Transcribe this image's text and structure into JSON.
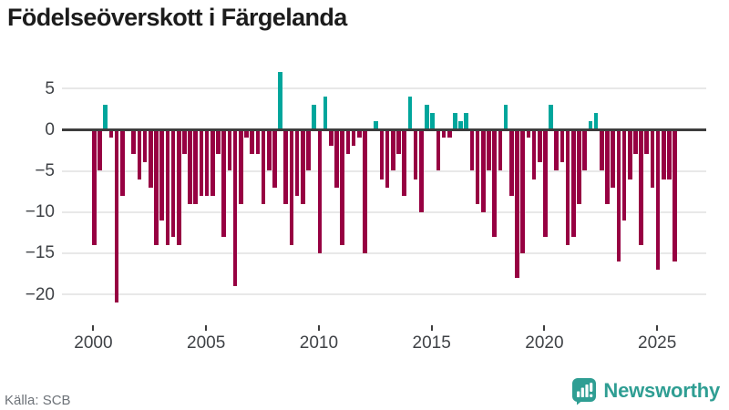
{
  "title": "Födelseöverskott i Färgelanda",
  "footer": {
    "source": "Källa: SCB",
    "brand": "Newsworthy"
  },
  "colors": {
    "positive_bar": "#00a69c",
    "negative_bar": "#970042",
    "zero_line": "#3d3d3d",
    "gridline": "#e8e8e8",
    "axis_label": "#3f4246",
    "title_text": "#1c1c1c",
    "source_text": "#6d7278",
    "brand_teal": "#2f9e93",
    "background": "#ffffff"
  },
  "chart_data": {
    "type": "bar",
    "title": "Födelseöverskott i Färgelanda",
    "frequency": "quarterly",
    "start": "2000 Q1",
    "end": "2025 Q4",
    "grid": "horizontal",
    "legend": "none",
    "ylim": [
      -22.5,
      7.5
    ],
    "y_ticks": [
      5,
      0,
      -5,
      -10,
      -15,
      -20
    ],
    "y_tick_labels": [
      "5",
      "0",
      "−5",
      "−10",
      "−15",
      "−20"
    ],
    "x_tick_labels": [
      "2000",
      "2005",
      "2010",
      "2015",
      "2020",
      "2025"
    ],
    "positive_color": "#00a69c",
    "negative_color": "#970042",
    "quarters": [
      "2000Q1",
      "2000Q2",
      "2000Q3",
      "2000Q4",
      "2001Q1",
      "2001Q2",
      "2001Q3",
      "2001Q4",
      "2002Q1",
      "2002Q2",
      "2002Q3",
      "2002Q4",
      "2003Q1",
      "2003Q2",
      "2003Q3",
      "2003Q4",
      "2004Q1",
      "2004Q2",
      "2004Q3",
      "2004Q4",
      "2005Q1",
      "2005Q2",
      "2005Q3",
      "2005Q4",
      "2006Q1",
      "2006Q2",
      "2006Q3",
      "2006Q4",
      "2007Q1",
      "2007Q2",
      "2007Q3",
      "2007Q4",
      "2008Q1",
      "2008Q2",
      "2008Q3",
      "2008Q4",
      "2009Q1",
      "2009Q2",
      "2009Q3",
      "2009Q4",
      "2010Q1",
      "2010Q2",
      "2010Q3",
      "2010Q4",
      "2011Q1",
      "2011Q2",
      "2011Q3",
      "2011Q4",
      "2012Q1",
      "2012Q2",
      "2012Q3",
      "2012Q4",
      "2013Q1",
      "2013Q2",
      "2013Q3",
      "2013Q4",
      "2014Q1",
      "2014Q2",
      "2014Q3",
      "2014Q4",
      "2015Q1",
      "2015Q2",
      "2015Q3",
      "2015Q4",
      "2016Q1",
      "2016Q2",
      "2016Q3",
      "2016Q4",
      "2017Q1",
      "2017Q2",
      "2017Q3",
      "2017Q4",
      "2018Q1",
      "2018Q2",
      "2018Q3",
      "2018Q4",
      "2019Q1",
      "2019Q2",
      "2019Q3",
      "2019Q4",
      "2020Q1",
      "2020Q2",
      "2020Q3",
      "2020Q4",
      "2021Q1",
      "2021Q2",
      "2021Q3",
      "2021Q4",
      "2022Q1",
      "2022Q2",
      "2022Q3",
      "2022Q4",
      "2023Q1",
      "2023Q2",
      "2023Q3",
      "2023Q4",
      "2024Q1",
      "2024Q2",
      "2024Q3",
      "2024Q4",
      "2025Q1",
      "2025Q2",
      "2025Q3",
      "2025Q4"
    ],
    "values": [
      -14,
      -5,
      3,
      -1,
      -21,
      -8,
      0,
      -3,
      -6,
      -4,
      -7,
      -14,
      -11,
      -14,
      -13,
      -14,
      -3,
      -9,
      -9,
      -8,
      -8,
      -8,
      -3,
      -13,
      -5,
      -19,
      -9,
      -1,
      -3,
      -3,
      -9,
      -5,
      -7,
      7,
      -9,
      -14,
      -8,
      -9,
      -5,
      3,
      -15,
      4,
      -2,
      -7,
      -14,
      -3,
      -2,
      -1,
      -15,
      0,
      1,
      -6,
      -7,
      -5,
      -3,
      -8,
      4,
      -6,
      -10,
      3,
      2,
      -5,
      -1,
      -1,
      2,
      1,
      2,
      -5,
      -9,
      -10,
      -5,
      -13,
      -5,
      3,
      -8,
      -18,
      -15,
      -1,
      -6,
      -4,
      -13,
      3,
      -5,
      -4,
      -14,
      -13,
      -9,
      -5,
      1,
      2,
      -5,
      -9,
      -7,
      -16,
      -11,
      -6,
      -3,
      -14,
      -3,
      -7,
      -17,
      -6,
      -6,
      -16
    ]
  }
}
